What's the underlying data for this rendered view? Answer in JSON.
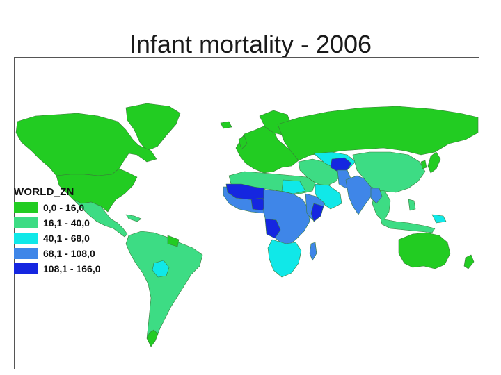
{
  "title": "Infant mortality - 2006",
  "legend": {
    "title": "WORLD_ZN",
    "items": [
      {
        "label": "0,0 - 16,0",
        "color": "#22cc22"
      },
      {
        "label": "16,1 - 40,0",
        "color": "#3ddc84"
      },
      {
        "label": "40,1 - 68,0",
        "color": "#10e8e8"
      },
      {
        "label": "68,1 - 108,0",
        "color": "#3f86e8"
      },
      {
        "label": "108,1 - 166,0",
        "color": "#1526e0"
      }
    ]
  },
  "colors": {
    "class1": "#22cc22",
    "class2": "#3ddc84",
    "class3": "#10e8e8",
    "class4": "#3f86e8",
    "class5": "#1526e0",
    "border": "#4a8a4a",
    "frame": "#555555"
  }
}
